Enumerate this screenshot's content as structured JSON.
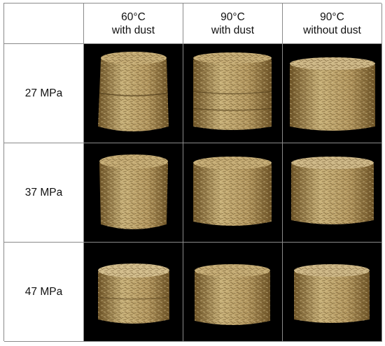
{
  "header": {
    "columns": [
      {
        "line1": "60°C",
        "line2": "with dust"
      },
      {
        "line1": "90°C",
        "line2": "with dust"
      },
      {
        "line1": "90°C",
        "line2": "without dust"
      }
    ]
  },
  "rows": [
    {
      "label": "27 MPa"
    },
    {
      "label": "37 MPa"
    },
    {
      "label": "47 MPa"
    }
  ],
  "colors": {
    "photo_background": "#000000",
    "briquette_light": "#c9b27a",
    "briquette_mid": "#a98b4f",
    "briquette_dark": "#6e5427",
    "grid_line": "#8a8a8a"
  }
}
